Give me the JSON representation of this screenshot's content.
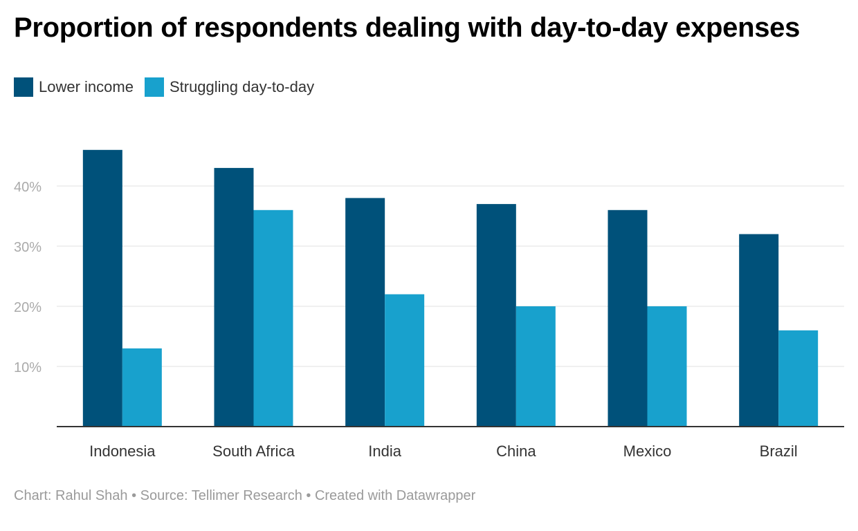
{
  "chart_data": {
    "type": "bar",
    "title": "Proportion of respondents dealing with day-to-day expenses",
    "categories": [
      "Indonesia",
      "South Africa",
      "India",
      "China",
      "Mexico",
      "Brazil"
    ],
    "series": [
      {
        "name": "Lower income",
        "values": [
          46,
          43,
          38,
          37,
          36,
          32
        ],
        "color": "#00517a"
      },
      {
        "name": "Struggling day-to-day",
        "values": [
          13,
          36,
          22,
          20,
          20,
          16
        ],
        "color": "#18a1cd"
      }
    ],
    "yticks": [
      "10%",
      "20%",
      "30%",
      "40%"
    ],
    "ytick_values": [
      10,
      20,
      30,
      40
    ],
    "ylim": [
      0,
      50
    ],
    "xlabel": "",
    "ylabel": "",
    "grid": true,
    "legend_position": "top-left"
  },
  "footer": {
    "credit": "Chart: Rahul Shah • Source: Tellimer Research • Created with Datawrapper"
  },
  "colors": {
    "gridline": "#e0e0e0",
    "axis": "#333333",
    "tick_label": "#aaaaaa",
    "category_label": "#333333"
  }
}
